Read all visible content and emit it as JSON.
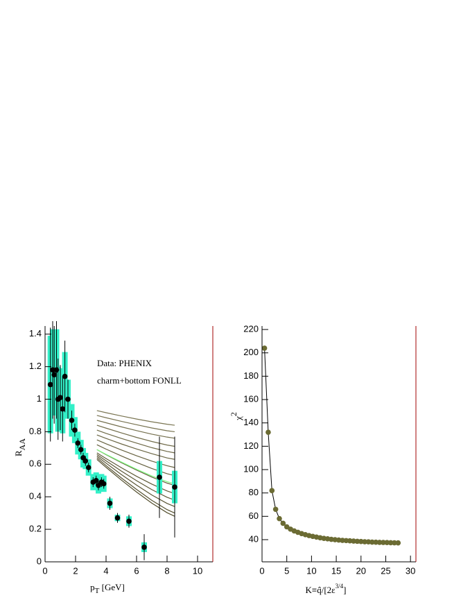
{
  "chart_data": [
    {
      "type": "scatter",
      "annotations": [
        "Data: PHENIX",
        "charm+bottom FONLL"
      ],
      "xlabel": "p",
      "xlabel_sub": "T",
      "xlabel_rest": " [GeV]",
      "ylabel": "R",
      "ylabel_sub": "AA",
      "xlim": [
        0,
        11
      ],
      "xticks": [
        0,
        2,
        4,
        6,
        8,
        10
      ],
      "ylim": [
        0,
        1.45
      ],
      "yticks": [
        0,
        0.2,
        0.4,
        0.6,
        0.8,
        1,
        1.2,
        1.4
      ],
      "x": [
        0.35,
        0.5,
        0.6,
        0.75,
        0.85,
        1.0,
        1.15,
        1.3,
        1.5,
        1.75,
        1.95,
        2.15,
        2.35,
        2.5,
        2.65,
        2.85,
        3.15,
        3.35,
        3.5,
        3.7,
        3.85,
        4.25,
        4.75,
        5.5,
        6.5,
        7.5,
        8.5
      ],
      "values": [
        1.09,
        1.18,
        1.15,
        1.18,
        1.0,
        1.01,
        0.94,
        1.14,
        1.0,
        0.87,
        0.81,
        0.73,
        0.69,
        0.64,
        0.62,
        0.58,
        0.49,
        0.5,
        0.47,
        0.49,
        0.48,
        0.36,
        0.27,
        0.25,
        0.09,
        0.52,
        0.46
      ],
      "errors": [
        0.35,
        0.3,
        0.3,
        0.3,
        0.25,
        0.2,
        0.2,
        0.22,
        0.12,
        0.06,
        0.04,
        0.03,
        0.03,
        0.03,
        0.03,
        0.03,
        0.03,
        0.03,
        0.03,
        0.03,
        0.03,
        0.04,
        0.03,
        0.04,
        0.08,
        0.25,
        0.31
      ],
      "sys_errors": [
        0.3,
        0.25,
        0.25,
        0.25,
        0.2,
        0.18,
        0.15,
        0.15,
        0.12,
        0.1,
        0.08,
        0.07,
        0.06,
        0.06,
        0.05,
        0.05,
        0.05,
        0.05,
        0.05,
        0.05,
        0.05,
        0.03,
        0.02,
        0.03,
        0.03,
        0.1,
        0.1
      ],
      "color": "#000000",
      "sys_color": "#33f0c8",
      "curves": {
        "x": [
          3.4,
          4,
          5,
          6,
          7,
          8,
          8.5
        ],
        "series": [
          {
            "color": "#7a7552",
            "values": [
              0.93,
              0.917,
              0.897,
              0.878,
              0.861,
              0.846,
              0.84
            ]
          },
          {
            "color": "#777250",
            "values": [
              0.9,
              0.886,
              0.864,
              0.843,
              0.823,
              0.806,
              0.8
            ]
          },
          {
            "color": "#746f4d",
            "values": [
              0.87,
              0.855,
              0.83,
              0.807,
              0.785,
              0.767,
              0.76
            ]
          },
          {
            "color": "#716c4a",
            "values": [
              0.84,
              0.822,
              0.793,
              0.765,
              0.74,
              0.718,
              0.71
            ]
          },
          {
            "color": "#6e6947",
            "values": [
              0.81,
              0.79,
              0.759,
              0.73,
              0.702,
              0.679,
              0.67
            ]
          },
          {
            "color": "#6b6644",
            "values": [
              0.78,
              0.759,
              0.725,
              0.694,
              0.665,
              0.639,
              0.63
            ]
          },
          {
            "color": "#686341",
            "values": [
              0.75,
              0.726,
              0.688,
              0.652,
              0.619,
              0.591,
              0.58
            ]
          },
          {
            "color": "#65603e",
            "values": [
              0.72,
              0.693,
              0.651,
              0.611,
              0.574,
              0.542,
              0.53
            ]
          },
          {
            "color": "#625d3b",
            "values": [
              0.69,
              0.659,
              0.61,
              0.564,
              0.521,
              0.484,
              0.47
            ]
          },
          {
            "color": "#5f5a38",
            "values": [
              0.67,
              0.635,
              0.579,
              0.526,
              0.478,
              0.436,
              0.42
            ]
          },
          {
            "color": "#5c5735",
            "values": [
              0.66,
              0.621,
              0.558,
              0.499,
              0.444,
              0.397,
              0.38
            ]
          },
          {
            "color": "#595432",
            "values": [
              0.65,
              0.607,
              0.537,
              0.472,
              0.411,
              0.359,
              0.34
            ]
          },
          {
            "color": "#56512f",
            "values": [
              0.64,
              0.592,
              0.516,
              0.445,
              0.378,
              0.321,
              0.3
            ]
          },
          {
            "color": "#534e2c",
            "values": [
              0.63,
              0.581,
              0.503,
              0.429,
              0.361,
              0.302,
              0.28
            ]
          },
          {
            "color": "#7fff7f",
            "values": [
              0.69,
              0.661,
              0.614,
              0.569,
              0.528,
              0.493,
              0.48
            ]
          }
        ]
      }
    },
    {
      "type": "line",
      "xlabel": "K≡q̂/[2ε",
      "xlabel_sup": "3/4",
      "xlabel_end": "]",
      "ylabel": "χ",
      "ylabel_sup": "2",
      "xlim": [
        0,
        31.1
      ],
      "xticks": [
        0,
        5,
        10,
        15,
        20,
        25,
        30
      ],
      "ylim": [
        21,
        223
      ],
      "yticks": [
        40,
        60,
        80,
        100,
        120,
        140,
        160,
        180,
        200,
        220
      ],
      "color": "#6b6b33",
      "x": [
        0.5,
        1.25,
        2,
        2.75,
        3.5,
        4.25,
        5,
        5.75,
        6.5,
        7.25,
        8,
        8.75,
        9.5,
        10.25,
        11,
        11.75,
        12.5,
        13.25,
        14,
        14.75,
        15.5,
        16.25,
        17,
        17.75,
        18.5,
        19.25,
        20,
        20.75,
        21.5,
        22.25,
        23,
        23.75,
        24.5,
        25.25,
        26,
        26.75,
        27.5
      ],
      "values": [
        204,
        132,
        82,
        66,
        58,
        54,
        51,
        49,
        47.5,
        46.3,
        45.2,
        44.3,
        43.5,
        42.8,
        42.2,
        41.6,
        41.1,
        40.7,
        40.3,
        40,
        39.7,
        39.4,
        39.2,
        39,
        38.8,
        38.6,
        38.4,
        38.2,
        38.1,
        37.9,
        37.8,
        37.7,
        37.6,
        37.5,
        37.4,
        37.3,
        37.2
      ]
    }
  ]
}
